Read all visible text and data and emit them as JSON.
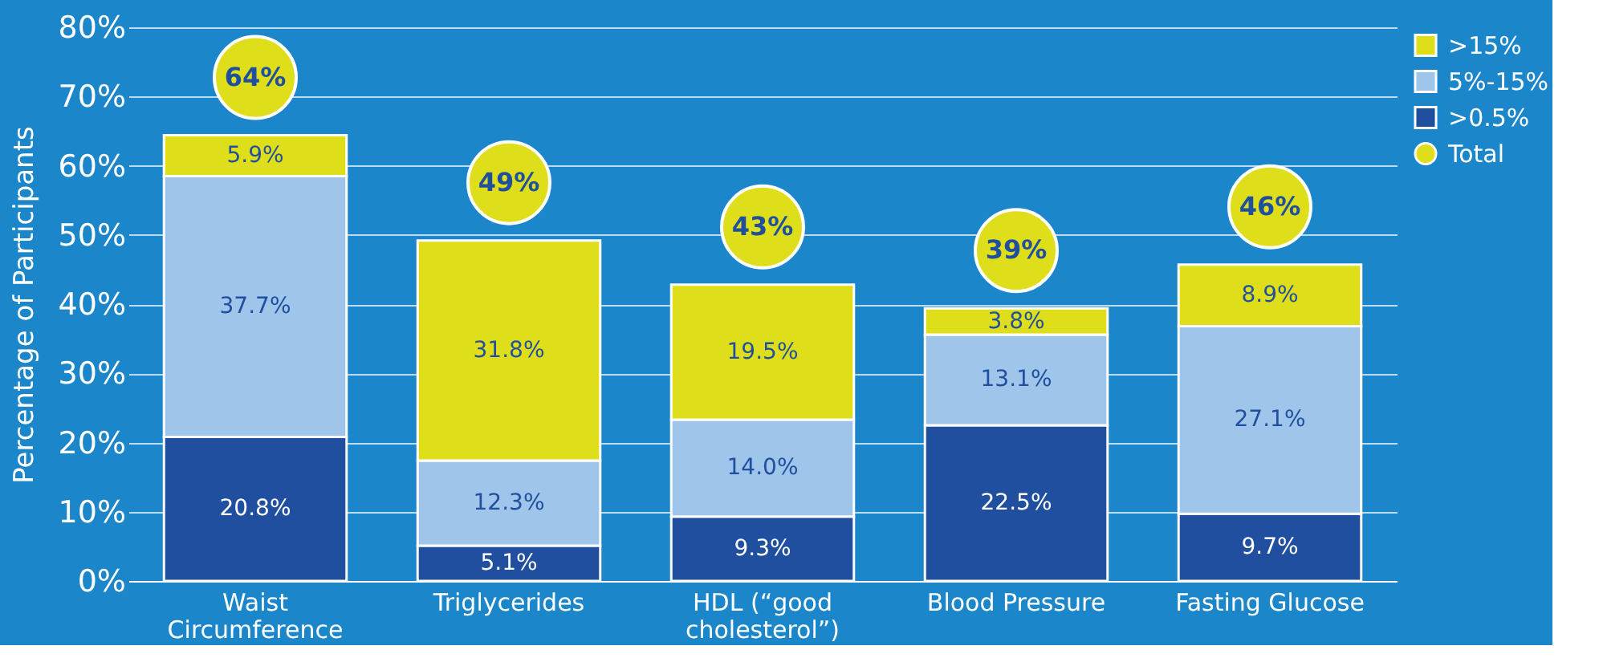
{
  "chart_data": {
    "type": "bar",
    "stacked": true,
    "ylabel": "Percentage of Participants",
    "categories": [
      "Waist\nCircumference",
      "Triglycerides",
      "HDL (“good\ncholesterol”)",
      "Blood Pressure",
      "Fasting Glucose"
    ],
    "series": [
      {
        "name": ">0.5%",
        "color": "#1f4f9e",
        "values": [
          20.8,
          5.1,
          9.3,
          22.5,
          9.7
        ],
        "value_labels": [
          "20.8%",
          "5.1%",
          "9.3%",
          "22.5%",
          "9.7%"
        ]
      },
      {
        "name": "5%-15%",
        "color": "#9fc5ea",
        "values": [
          37.7,
          12.3,
          14.0,
          13.1,
          27.1
        ],
        "value_labels": [
          "37.7%",
          "12.3%",
          "14.0%",
          "13.1%",
          "27.1%"
        ]
      },
      {
        "name": ">15%",
        "color": "#dede1a",
        "values": [
          5.9,
          31.8,
          19.5,
          3.8,
          8.9
        ],
        "value_labels": [
          "5.9%",
          "31.8%",
          "19.5%",
          "3.8%",
          "8.9%"
        ]
      }
    ],
    "totals": [
      "64%",
      "49%",
      "43%",
      "39%",
      "46%"
    ],
    "annotations": [
      "Total"
    ],
    "ylim": [
      0,
      80
    ],
    "yticks": [
      {
        "value": 0,
        "label": "0%"
      },
      {
        "value": 10,
        "label": "10%"
      },
      {
        "value": 20,
        "label": "20%"
      },
      {
        "value": 30,
        "label": "30%"
      },
      {
        "value": 40,
        "label": "40%"
      },
      {
        "value": 50,
        "label": "50%"
      },
      {
        "value": 60,
        "label": "60%"
      },
      {
        "value": 70,
        "label": "70%"
      },
      {
        "value": 80,
        "label": "80%"
      }
    ],
    "grid": "y",
    "legend": "top right"
  }
}
